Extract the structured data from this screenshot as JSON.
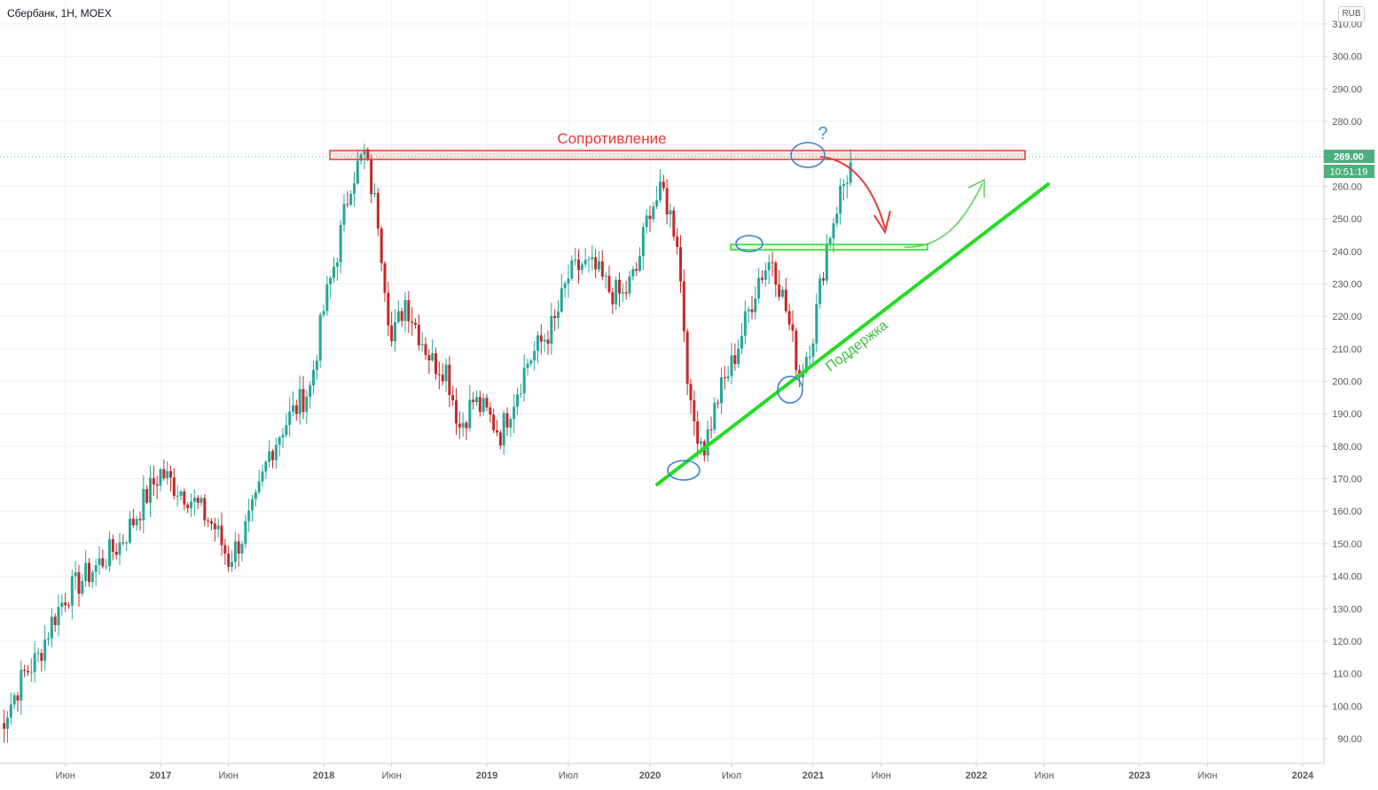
{
  "header": {
    "symbol": "Сбербанк",
    "interval": "1Н",
    "exchange": "MOEX",
    "currency": "RUB"
  },
  "price_axis": {
    "last_price_label": "269.00",
    "countdown_label": "10:51:19",
    "badge_color": "#4caf7d"
  },
  "annotations": {
    "resistance_label": "Сопротивление",
    "support_label": "Поддержка",
    "question_mark": "?",
    "resistance_color": "#e53935",
    "support_color": "#22dd22",
    "ellipse_color": "#3b7fd4"
  },
  "chart_data": {
    "type": "candlestick",
    "y_axis": {
      "ticks": [
        90,
        100,
        110,
        120,
        130,
        140,
        150,
        160,
        170,
        180,
        190,
        200,
        210,
        220,
        230,
        240,
        250,
        260,
        270,
        280,
        290,
        300,
        310
      ],
      "tick_labels": [
        "90.00",
        "100.00",
        "110.00",
        "120.00",
        "130.00",
        "140.00",
        "150.00",
        "160.00",
        "170.00",
        "180.00",
        "190.00",
        "200.00",
        "210.00",
        "220.00",
        "230.00",
        "240.00",
        "250.00",
        "260.00",
        "270.00",
        "280.00",
        "290.00",
        "300.00",
        "310.00"
      ],
      "range": [
        80,
        313
      ],
      "position": "right",
      "grid": true
    },
    "x_axis": {
      "tick_labels": [
        "Июн",
        "2017",
        "Июн",
        "2018",
        "Июн",
        "2019",
        "Июл",
        "2020",
        "Июл",
        "2021",
        "Июн",
        "2022",
        "Июн",
        "2023",
        "Июн",
        "2024"
      ],
      "tick_dates": [
        "2016-06",
        "2017-01",
        "2017-06",
        "2018-01",
        "2018-06",
        "2019-01",
        "2019-07",
        "2020-01",
        "2020-07",
        "2021-01",
        "2021-06",
        "2022-01",
        "2022-06",
        "2023-01",
        "2023-06",
        "2024-01"
      ],
      "grid": true
    },
    "up_color": "#26a69a",
    "down_color": "#c62828",
    "close_path": [
      [
        "2016-01",
        92
      ],
      [
        "2016-02",
        101
      ],
      [
        "2016-03",
        110
      ],
      [
        "2016-04",
        115
      ],
      [
        "2016-05",
        126
      ],
      [
        "2016-06",
        134
      ],
      [
        "2016-07",
        138
      ],
      [
        "2016-08",
        142
      ],
      [
        "2016-09",
        146
      ],
      [
        "2016-10",
        150
      ],
      [
        "2016-11",
        157
      ],
      [
        "2016-12",
        165
      ],
      [
        "2017-01",
        172
      ],
      [
        "2017-02",
        168
      ],
      [
        "2017-03",
        165
      ],
      [
        "2017-04",
        160
      ],
      [
        "2017-05",
        155
      ],
      [
        "2017-06",
        145
      ],
      [
        "2017-07",
        152
      ],
      [
        "2017-08",
        162
      ],
      [
        "2017-09",
        178
      ],
      [
        "2017-10",
        186
      ],
      [
        "2017-11",
        192
      ],
      [
        "2017-12",
        198
      ],
      [
        "2018-01",
        222
      ],
      [
        "2018-02",
        240
      ],
      [
        "2018-03",
        262
      ],
      [
        "2018-04",
        270
      ],
      [
        "2018-05",
        250
      ],
      [
        "2018-06",
        212
      ],
      [
        "2018-07",
        225
      ],
      [
        "2018-08",
        215
      ],
      [
        "2018-09",
        206
      ],
      [
        "2018-10",
        204
      ],
      [
        "2018-11",
        186
      ],
      [
        "2018-12",
        194
      ],
      [
        "2019-01",
        190
      ],
      [
        "2019-02",
        184
      ],
      [
        "2019-03",
        195
      ],
      [
        "2019-04",
        206
      ],
      [
        "2019-05",
        212
      ],
      [
        "2019-06",
        218
      ],
      [
        "2019-07",
        232
      ],
      [
        "2019-08",
        236
      ],
      [
        "2019-09",
        234
      ],
      [
        "2019-10",
        228
      ],
      [
        "2019-11",
        226
      ],
      [
        "2019-12",
        234
      ],
      [
        "2020-01",
        254
      ],
      [
        "2020-02",
        258
      ],
      [
        "2020-03",
        244
      ],
      [
        "2020-04",
        190
      ],
      [
        "2020-05",
        180
      ],
      [
        "2020-06",
        195
      ],
      [
        "2020-07",
        205
      ],
      [
        "2020-08",
        218
      ],
      [
        "2020-09",
        232
      ],
      [
        "2020-10",
        238
      ],
      [
        "2020-11",
        222
      ],
      [
        "2020-12",
        202
      ],
      [
        "2021-01",
        215
      ],
      [
        "2021-02",
        242
      ],
      [
        "2021-03",
        258
      ],
      [
        "2021-04",
        269
      ]
    ]
  }
}
